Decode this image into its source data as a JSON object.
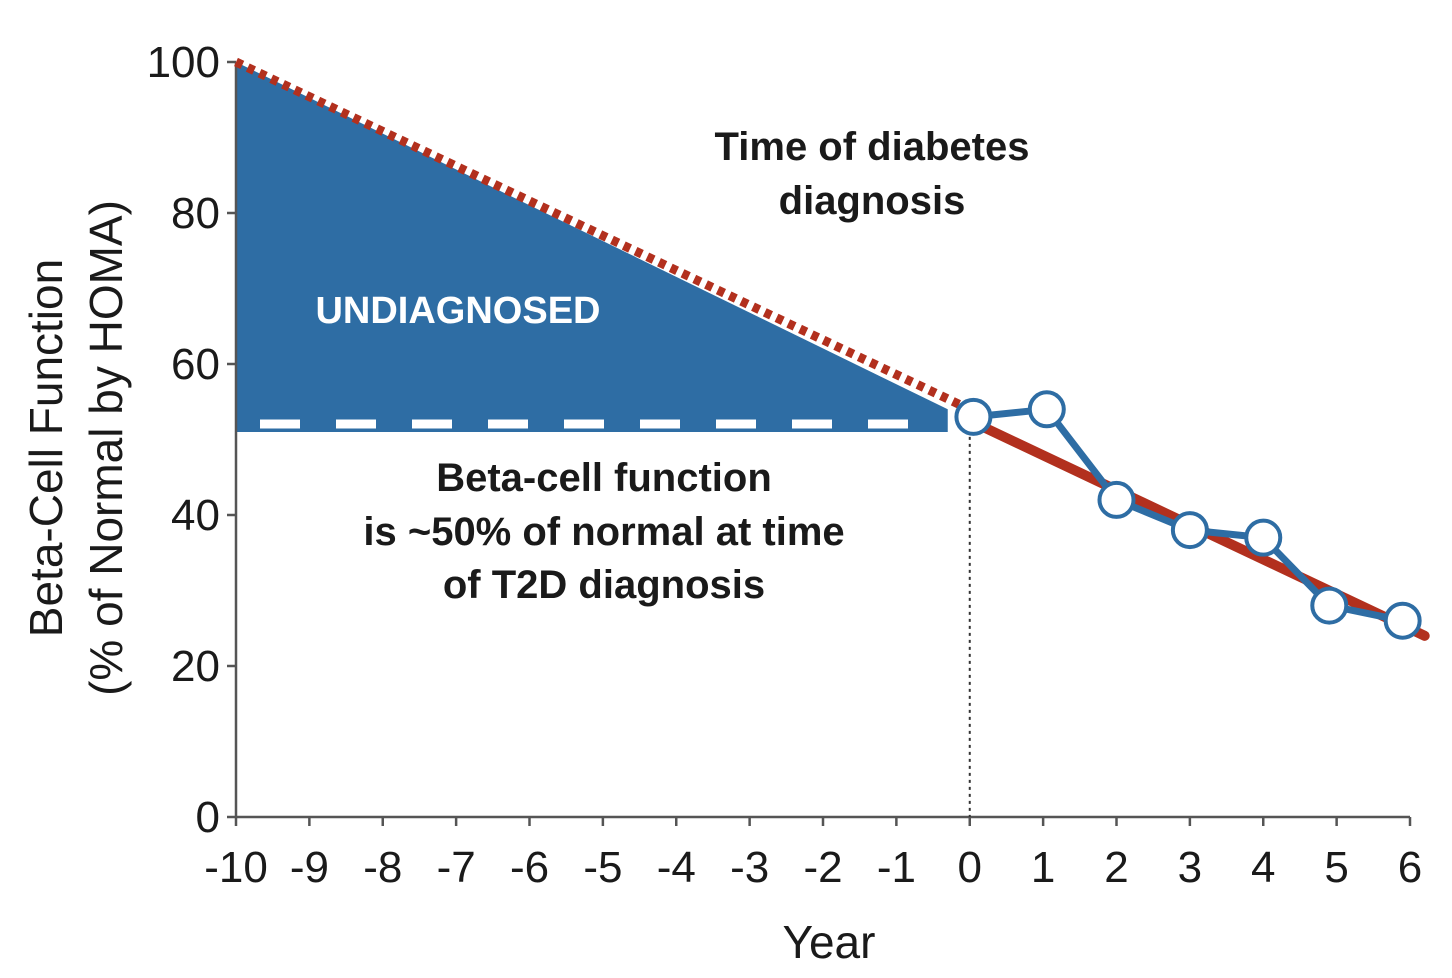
{
  "chart_data": {
    "type": "line",
    "ylabel": "Beta-Cell Function",
    "ylabel_sub": "(% of Normal by HOMA)",
    "xlabel": "Year",
    "xlim": [
      -10,
      6
    ],
    "ylim": [
      0,
      100
    ],
    "x_ticks": [
      "-10",
      "-9",
      "-8",
      "-7",
      "-6",
      "-5",
      "-4",
      "-3",
      "-2",
      "-1",
      "0",
      "1",
      "2",
      "3",
      "4",
      "5",
      "6"
    ],
    "y_ticks": [
      "0",
      "20",
      "40",
      "60",
      "80",
      "100"
    ],
    "grid": false,
    "colors": {
      "undiagnosed_fill": "#2e6da4",
      "trend_line": "#b2301e",
      "observed_line": "#2e6da4",
      "marker_fill": "#ffffff"
    },
    "undiagnosed_region": {
      "label": "UNDIAGNOSED",
      "x": [
        -10,
        -0.3
      ],
      "top_y": [
        100,
        54
      ],
      "bottom_y": 51
    },
    "trend_projection": {
      "x": [
        -10,
        0
      ],
      "y": [
        100,
        54
      ]
    },
    "trend_line": {
      "x": [
        0,
        6.2
      ],
      "y": [
        52.5,
        24
      ]
    },
    "observed_series": {
      "x": [
        0.05,
        1.05,
        2.0,
        3.0,
        4.0,
        4.9,
        5.9
      ],
      "y": [
        53,
        54,
        42,
        38,
        37,
        28,
        26
      ]
    },
    "diagnosis_marker_x": 0,
    "annotations": {
      "diagnosis_line1": "Time of diabetes",
      "diagnosis_line2": "diagnosis",
      "beta_line1": "Beta-cell function",
      "beta_line2": "is ~50% of normal at time",
      "beta_line3": "of T2D diagnosis"
    }
  }
}
